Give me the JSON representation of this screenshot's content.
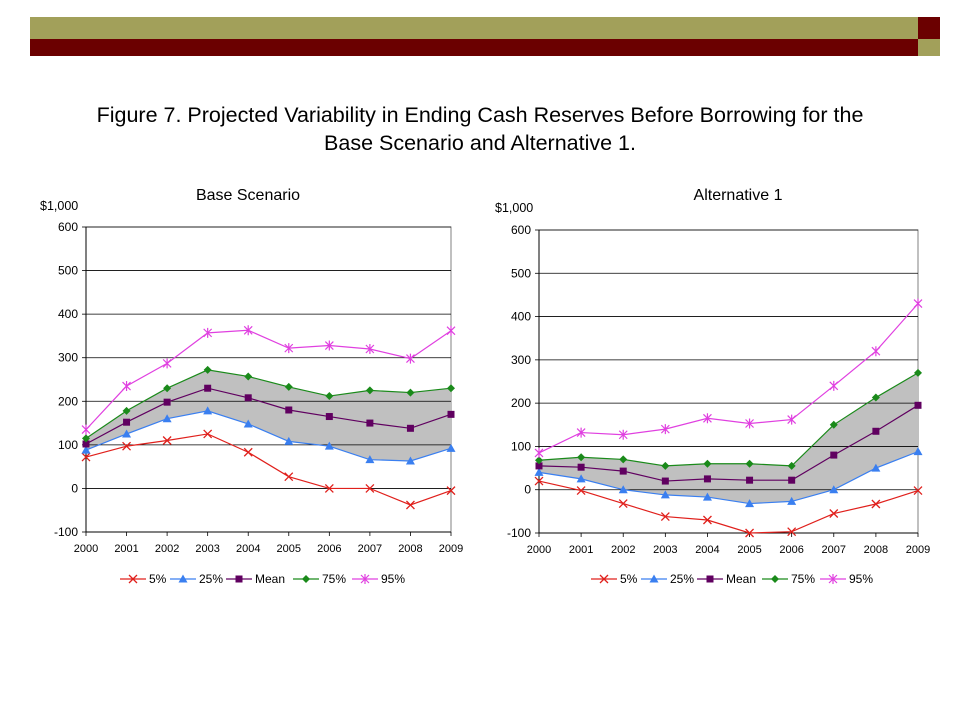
{
  "page": {
    "title_line1": "Figure 7.  Projected Variability in Ending Cash Reserves Before Borrowing for the",
    "title_line2": "Base Scenario and Alternative 1.",
    "colors": {
      "olive": "#a2a05a",
      "maroon": "#6b0000",
      "band": "#c0c0c0"
    }
  },
  "chart_data": [
    {
      "type": "line",
      "title": "Base Scenario",
      "ylabel": "$1,000",
      "x": [
        "2000",
        "2001",
        "2002",
        "2003",
        "2004",
        "2005",
        "2006",
        "2007",
        "2008",
        "2009"
      ],
      "ylim": [
        -100,
        600
      ],
      "yticks": [
        -100,
        0,
        100,
        200,
        300,
        400,
        500,
        600
      ],
      "grid": "horizontal",
      "legend": "bottom",
      "shaded_band": [
        "25%",
        "75%"
      ],
      "series": [
        {
          "name": "5%",
          "color": "#e0201c",
          "marker": "x",
          "values": [
            72,
            97,
            110,
            125,
            83,
            27,
            0,
            0,
            -38,
            -5
          ]
        },
        {
          "name": "25%",
          "color": "#3a7ff0",
          "marker": "triangle",
          "values": [
            88,
            125,
            160,
            178,
            148,
            108,
            97,
            66,
            63,
            92
          ]
        },
        {
          "name": "Mean",
          "color": "#600060",
          "marker": "square",
          "values": [
            102,
            152,
            198,
            230,
            208,
            180,
            165,
            150,
            138,
            170
          ]
        },
        {
          "name": "75%",
          "color": "#1a8a1a",
          "marker": "diamond",
          "values": [
            115,
            178,
            230,
            272,
            257,
            233,
            212,
            225,
            220,
            230
          ]
        },
        {
          "name": "95%",
          "color": "#e040e0",
          "marker": "star",
          "values": [
            135,
            235,
            287,
            357,
            363,
            322,
            328,
            320,
            298,
            362
          ]
        }
      ]
    },
    {
      "type": "line",
      "title": "Alternative 1",
      "ylabel": "$1,000",
      "x": [
        "2000",
        "2001",
        "2002",
        "2003",
        "2004",
        "2005",
        "2006",
        "2007",
        "2008",
        "2009"
      ],
      "ylim": [
        -100,
        600
      ],
      "yticks": [
        -100,
        0,
        100,
        200,
        300,
        400,
        500,
        600
      ],
      "grid": "horizontal",
      "legend": "bottom",
      "shaded_band": [
        "25%",
        "75%"
      ],
      "series": [
        {
          "name": "5%",
          "color": "#e0201c",
          "marker": "x",
          "values": [
            20,
            -2,
            -32,
            -62,
            -70,
            -100,
            -97,
            -55,
            -33,
            -2
          ]
        },
        {
          "name": "25%",
          "color": "#3a7ff0",
          "marker": "triangle",
          "values": [
            40,
            25,
            0,
            -12,
            -17,
            -32,
            -27,
            0,
            50,
            88
          ]
        },
        {
          "name": "Mean",
          "color": "#600060",
          "marker": "square",
          "values": [
            55,
            52,
            43,
            20,
            25,
            22,
            22,
            80,
            135,
            195
          ]
        },
        {
          "name": "75%",
          "color": "#1a8a1a",
          "marker": "diamond",
          "values": [
            68,
            75,
            70,
            55,
            60,
            60,
            55,
            150,
            213,
            270
          ]
        },
        {
          "name": "95%",
          "color": "#e040e0",
          "marker": "star",
          "values": [
            85,
            132,
            127,
            140,
            165,
            153,
            162,
            240,
            320,
            430
          ]
        }
      ]
    }
  ]
}
